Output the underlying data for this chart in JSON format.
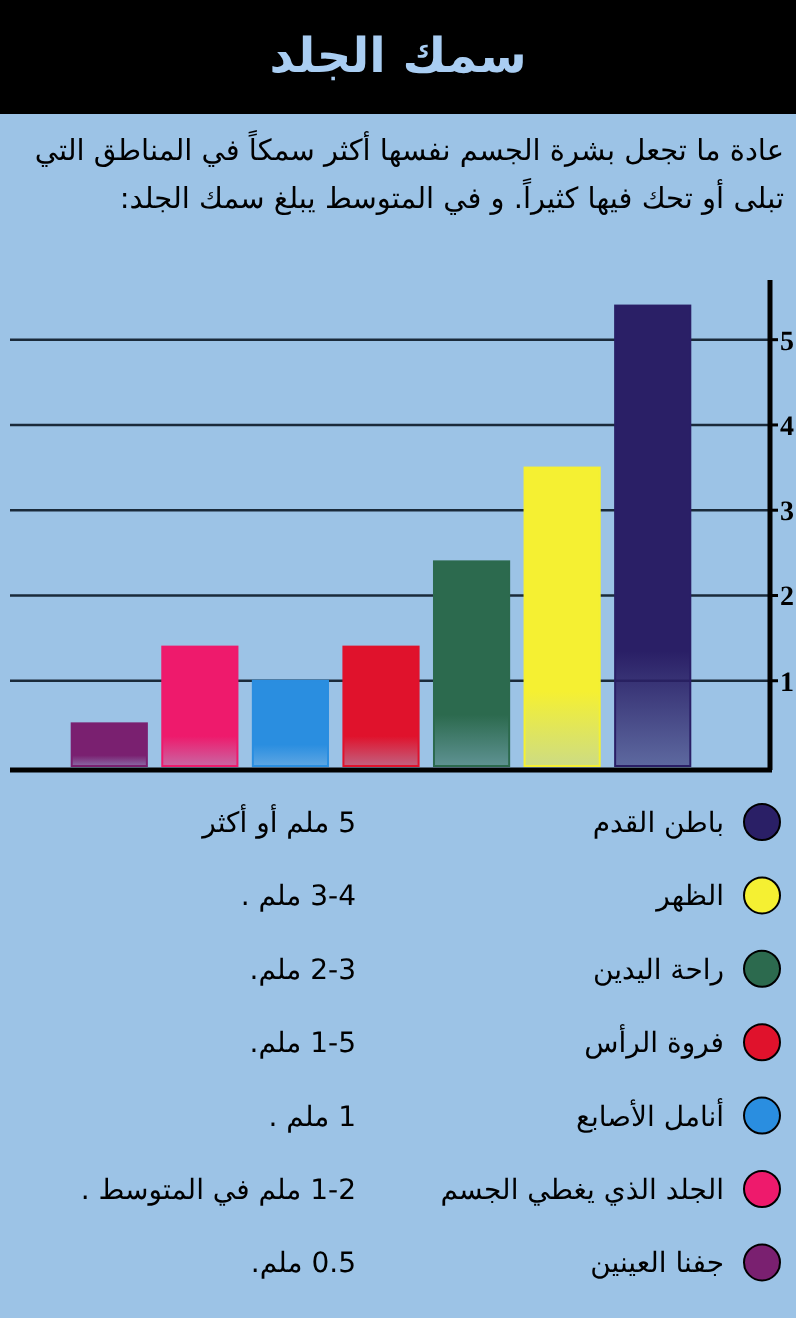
{
  "chart_data": {
    "type": "bar",
    "title": "سمك الجلد",
    "subtitle": "عادة ما تجعل بشرة الجسم نفسها أكثر سمكاً في المناطق التي تبلى أو تحك فيها كثيراً. و في المتوسط يبلغ سمك الجلد:",
    "categories": [
      null,
      null,
      null,
      null,
      null,
      null,
      null
    ],
    "stacked": true,
    "series": [
      {
        "name": "باطن القدم",
        "color": "#2a1f66",
        "values": [
          null,
          null,
          null,
          null,
          null,
          null,
          5.4
        ]
      },
      {
        "name": "الظهر",
        "color": "#f5f032",
        "values": [
          null,
          null,
          null,
          null,
          null,
          3.5,
          null
        ]
      },
      {
        "name": "راحة اليدين",
        "color": "#2c6a4e",
        "values": [
          null,
          null,
          null,
          null,
          2.4,
          null,
          null
        ]
      },
      {
        "name": "فروة الرأس",
        "color": "#e0122c",
        "values": [
          null,
          null,
          null,
          1.4,
          null,
          null,
          null
        ]
      },
      {
        "name": "أنامل الأصابع",
        "color": "#2a8ee0",
        "values": [
          null,
          null,
          1.0,
          null,
          null,
          null,
          null
        ]
      },
      {
        "name": "الجلد الذي يغطي الجسم",
        "color": "#ee1a6c",
        "values": [
          null,
          1.4,
          null,
          null,
          null,
          null,
          null
        ]
      },
      {
        "name": "جفنا العينين",
        "color": "#7a2070",
        "values": [
          0.5,
          null,
          null,
          null,
          null,
          null,
          null
        ]
      }
    ],
    "annotations": [
      "5 ملم أو أكثر",
      "3-4 ملم .",
      "2-3 ملم.",
      "1-5 ملم.",
      "1 ملم .",
      "1-2 ملم في المتوسط .",
      "0.5 ملم."
    ],
    "ylim": [
      0,
      5.7
    ],
    "yticks": [
      1,
      2,
      3,
      4,
      5
    ],
    "grid": "y",
    "legend": "bottom"
  }
}
